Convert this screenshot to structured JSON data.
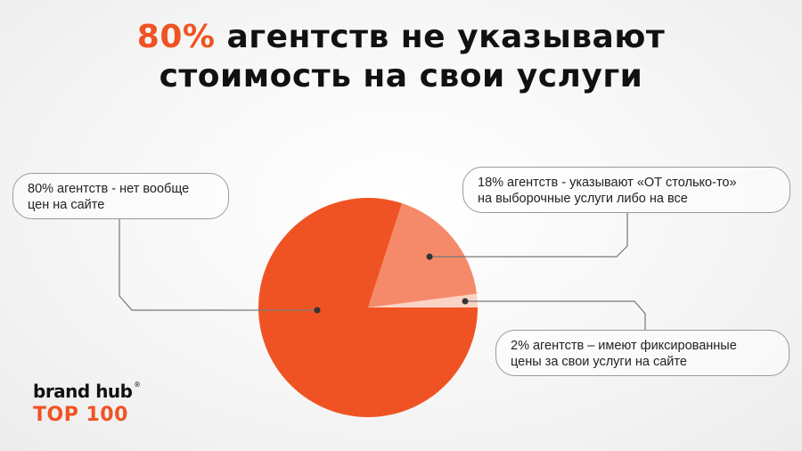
{
  "title": {
    "accent": "80%",
    "rest_line1": "агентств не указывают",
    "line2": "стоимость на свои услуги"
  },
  "colors": {
    "accent": "#f05323",
    "slice_80": "#f05323",
    "slice_18": "#f58a6b",
    "slice_2": "#fbd3c4",
    "leader": "#777777"
  },
  "chart_data": {
    "type": "pie",
    "slices": [
      {
        "label_line1": "80% агентств - нет вообще",
        "label_line2": "цен на сайте",
        "value": 80
      },
      {
        "label_line1": "18% агентств - указывают «ОТ столько-то»",
        "label_line2": "на выборочные услуги либо на все",
        "value": 18
      },
      {
        "label_line1": "2% агентств – имеют фиксированные",
        "label_line2": "цены за свои услуги на сайте",
        "value": 2
      }
    ],
    "start_angle_deg": 0,
    "direction": "counterclockwise",
    "legend": "callouts"
  },
  "brand": {
    "name": "brand hub",
    "reg": "®",
    "tagline": "TOP 100"
  }
}
